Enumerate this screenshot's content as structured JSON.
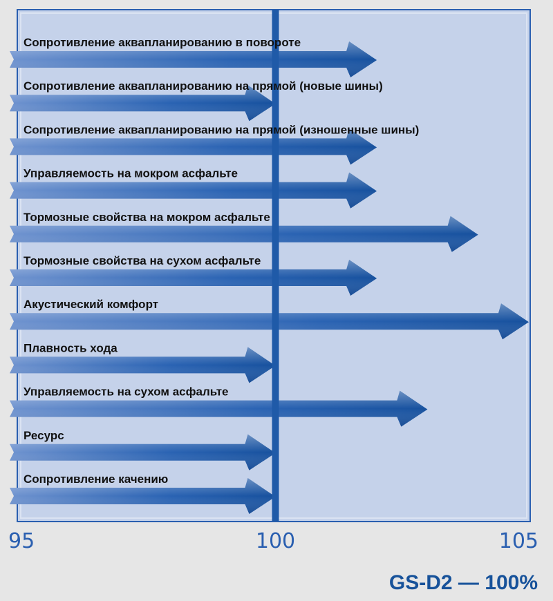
{
  "chart_data": {
    "type": "bar",
    "orientation": "horizontal",
    "categories": [
      "Сопротивление аквапланированию в повороте",
      "Сопротивление аквапланированию на прямой (новые шины)",
      "Сопротивление аквапланированию на прямой (изношенные шины)",
      "Управляемость на мокром асфальте",
      "Тормозные свойства на мокром асфальте",
      "Тормозные свойства на сухом асфальте",
      "Акустический комфорт",
      "Плавность хода",
      "Управляемость на сухом асфальте",
      "Ресурс",
      "Сопротивление качению"
    ],
    "values": [
      102,
      100,
      102,
      102,
      104,
      102,
      105,
      100,
      103,
      100,
      100
    ],
    "xlim": [
      95,
      105
    ],
    "xticks": [
      "95",
      "100",
      "105"
    ],
    "reference_line": 100,
    "annotation": "GS-D2 — 100%",
    "grid": false,
    "colors": {
      "bar": "#1f5aa8",
      "plot_bg": "#c5d2ea",
      "page_bg": "#e6e6e6",
      "reference": "#1f5aa8"
    }
  }
}
